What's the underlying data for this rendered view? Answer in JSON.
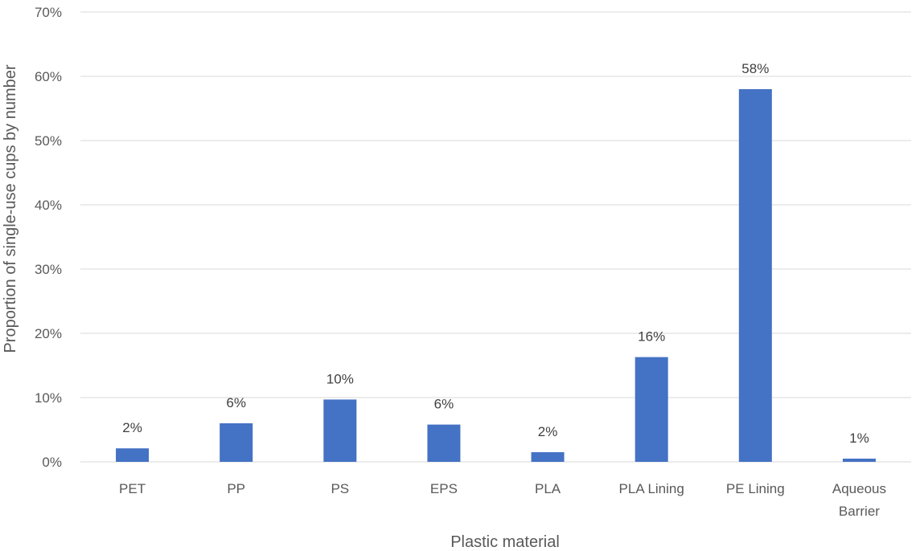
{
  "colors": {
    "bar": "#4472C4",
    "grid": "#D9D9D9",
    "text": "#595959"
  },
  "chart_data": {
    "type": "bar",
    "title": "",
    "xlabel": "Plastic material",
    "ylabel": "Proportion of single-use cups by number",
    "ylim": [
      0,
      70
    ],
    "yticks": [
      0,
      10,
      20,
      30,
      40,
      50,
      60,
      70
    ],
    "ytick_labels": [
      "0%",
      "10%",
      "20%",
      "30%",
      "40%",
      "50%",
      "60%",
      "70%"
    ],
    "categories": [
      [
        "PET"
      ],
      [
        "PP"
      ],
      [
        "PS"
      ],
      [
        "EPS"
      ],
      [
        "PLA"
      ],
      [
        "PLA Lining"
      ],
      [
        "PE Lining"
      ],
      [
        "Aqueous",
        "Barrier"
      ]
    ],
    "values": [
      2.1,
      6.0,
      9.7,
      5.8,
      1.5,
      16.3,
      58.0,
      0.5
    ],
    "data_labels": [
      "2%",
      "6%",
      "10%",
      "6%",
      "2%",
      "16%",
      "58%",
      "1%"
    ],
    "grid": true,
    "legend": "none"
  }
}
